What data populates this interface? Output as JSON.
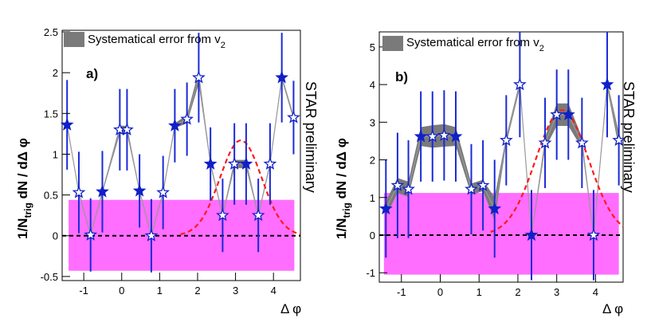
{
  "colors": {
    "band": "#ff55ff",
    "points": "#1020c8",
    "errorbar": "#1a2ad8",
    "sys_band": "#7a7a7a",
    "connector": "#9a9a9a",
    "fit": "#ff1a1a",
    "zero_line": "#000000"
  },
  "chart_data": [
    {
      "type": "scatter",
      "panel_label": "a)",
      "legend": {
        "text": "Systematical error from v",
        "sub": "2",
        "placement": "top-left"
      },
      "side_label": "STAR preliminary",
      "ylabel": {
        "pre": "1/N",
        "sub": "trig",
        "post": " dN / dΔ φ"
      },
      "xlabel": "Δ φ",
      "xlim": [
        -1.57,
        4.71
      ],
      "ylim": [
        -0.55,
        2.52
      ],
      "xticks": [
        "-1",
        "0",
        "1",
        "2",
        "3",
        "4"
      ],
      "xtick_values": [
        -1,
        0,
        1,
        2,
        3,
        4
      ],
      "yticks": [
        "-0.5",
        "0",
        "0.5",
        "1",
        "1.5",
        "2",
        "2.5"
      ],
      "ytick_values": [
        -0.5,
        0,
        0.5,
        1,
        1.5,
        2,
        2.5
      ],
      "band": {
        "xmin": -1.4,
        "xmax": 4.55,
        "ymin": -0.43,
        "ymax": 0.44
      },
      "points": [
        {
          "x": -1.44,
          "y": 1.36,
          "err": 0.55,
          "sys": 0.02
        },
        {
          "x": -1.13,
          "y": 0.53,
          "err": 0.5,
          "sys": 0.02
        },
        {
          "x": -0.82,
          "y": 0.01,
          "err": 0.45,
          "sys": 0.02
        },
        {
          "x": -0.51,
          "y": 0.54,
          "err": 0.5,
          "sys": 0.02
        },
        {
          "x": -0.05,
          "y": 1.3,
          "err": 0.5,
          "sys": 0.05
        },
        {
          "x": 0.14,
          "y": 1.3,
          "err": 0.5,
          "sys": 0.05
        },
        {
          "x": 0.47,
          "y": 0.55,
          "err": 0.45,
          "sys": 0.02
        },
        {
          "x": 0.78,
          "y": 0.0,
          "err": 0.45,
          "sys": 0.02
        },
        {
          "x": 1.09,
          "y": 0.53,
          "err": 0.45,
          "sys": 0.02
        },
        {
          "x": 1.4,
          "y": 1.35,
          "err": 0.45,
          "sys": 0.03
        },
        {
          "x": 1.72,
          "y": 1.43,
          "err": 0.45,
          "sys": 0.05
        },
        {
          "x": 2.03,
          "y": 1.94,
          "err": 0.55,
          "sys": 0.08
        },
        {
          "x": 2.34,
          "y": 0.88,
          "err": 0.45,
          "sys": 0.03
        },
        {
          "x": 2.66,
          "y": 0.25,
          "err": 0.45,
          "sys": 0.02
        },
        {
          "x": 2.97,
          "y": 0.88,
          "err": 0.5,
          "sys": 0.05
        },
        {
          "x": 3.28,
          "y": 0.88,
          "err": 0.5,
          "sys": 0.05
        },
        {
          "x": 3.6,
          "y": 0.25,
          "err": 0.45,
          "sys": 0.02
        },
        {
          "x": 3.91,
          "y": 0.88,
          "err": 0.5,
          "sys": 0.03
        },
        {
          "x": 4.22,
          "y": 1.94,
          "err": 0.55,
          "sys": 0.03
        },
        {
          "x": 4.53,
          "y": 1.45,
          "err": 0.45,
          "sys": 0.03
        }
      ],
      "fit": {
        "amplitude": 1.17,
        "mean": 3.14,
        "sigma": 0.55,
        "xmin": 1.55,
        "xmax": 4.71
      }
    },
    {
      "type": "scatter",
      "panel_label": "b)",
      "legend": {
        "text": "Systematical error from v",
        "sub": "2",
        "placement": "top-left"
      },
      "side_label": "STAR preliminary",
      "ylabel": {
        "pre": "1/N",
        "sub": "trig",
        "post": " dN / dΔ φ"
      },
      "xlabel": "Δ φ",
      "xlim": [
        -1.57,
        4.71
      ],
      "ylim": [
        -1.25,
        5.4
      ],
      "xticks": [
        "-1",
        "0",
        "1",
        "2",
        "3",
        "4"
      ],
      "xtick_values": [
        -1,
        0,
        1,
        2,
        3,
        4
      ],
      "yticks": [
        "-1",
        "0",
        "1",
        "2",
        "3",
        "4",
        "5"
      ],
      "ytick_values": [
        -1,
        0,
        1,
        2,
        3,
        4,
        5
      ],
      "band": {
        "xmin": -1.45,
        "xmax": 4.6,
        "ymin": -1.05,
        "ymax": 1.12
      },
      "points": [
        {
          "x": -1.4,
          "y": 0.7,
          "err": 1.3,
          "sys": 0.2
        },
        {
          "x": -1.1,
          "y": 1.32,
          "err": 1.4,
          "sys": 0.2
        },
        {
          "x": -0.82,
          "y": 1.22,
          "err": 1.3,
          "sys": 0.2
        },
        {
          "x": -0.5,
          "y": 2.62,
          "err": 1.2,
          "sys": 0.25
        },
        {
          "x": -0.2,
          "y": 2.62,
          "err": 1.2,
          "sys": 0.3
        },
        {
          "x": 0.1,
          "y": 2.65,
          "err": 1.2,
          "sys": 0.3
        },
        {
          "x": 0.4,
          "y": 2.62,
          "err": 1.2,
          "sys": 0.25
        },
        {
          "x": 0.8,
          "y": 1.22,
          "err": 1.2,
          "sys": 0.15
        },
        {
          "x": 1.1,
          "y": 1.32,
          "err": 1.2,
          "sys": 0.15
        },
        {
          "x": 1.4,
          "y": 0.7,
          "err": 1.3,
          "sys": 0.3
        },
        {
          "x": 1.7,
          "y": 2.52,
          "err": 1.2,
          "sys": 0.1
        },
        {
          "x": 2.05,
          "y": 4.0,
          "err": 1.4,
          "sys": 0.1
        },
        {
          "x": 2.35,
          "y": 0.0,
          "err": 1.2,
          "sys": 0.05
        },
        {
          "x": 2.7,
          "y": 2.45,
          "err": 1.2,
          "sys": 0.15
        },
        {
          "x": 3.0,
          "y": 3.2,
          "err": 1.2,
          "sys": 0.3
        },
        {
          "x": 3.3,
          "y": 3.2,
          "err": 1.2,
          "sys": 0.3
        },
        {
          "x": 3.65,
          "y": 2.45,
          "err": 1.2,
          "sys": 0.15
        },
        {
          "x": 3.95,
          "y": 0.0,
          "err": 1.2,
          "sys": 0.05
        },
        {
          "x": 4.3,
          "y": 4.0,
          "err": 1.4,
          "sys": 0.1
        },
        {
          "x": 4.6,
          "y": 2.52,
          "err": 1.2,
          "sys": 0.2
        }
      ],
      "fit": {
        "amplitude": 3.32,
        "mean": 3.14,
        "sigma": 0.68,
        "xmin": 1.3,
        "xmax": 4.71
      }
    }
  ]
}
